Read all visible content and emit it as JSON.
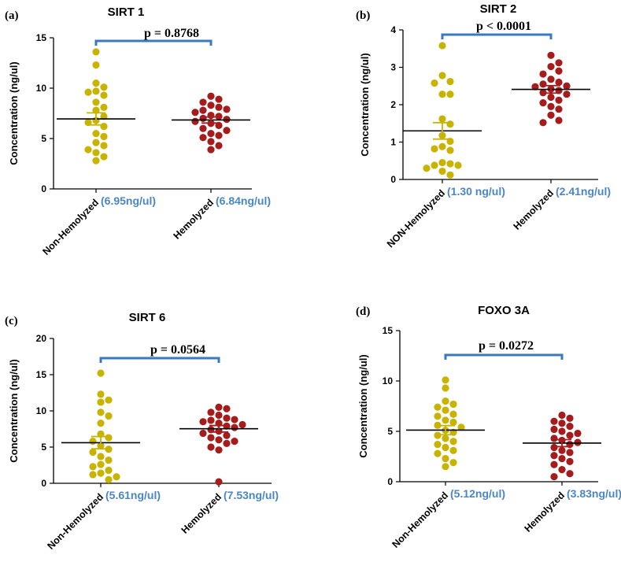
{
  "colors": {
    "non_hemolyzed": "#c8b400",
    "hemolyzed": "#a51c1c",
    "bracket": "#3a78c2",
    "mean_label": "#4a86c5"
  },
  "chart_data": [
    {
      "type": "scatter",
      "panel": "(a)",
      "title": "SIRT 1",
      "ylabel": "Concentration (ng/ul)",
      "ylim": [
        0,
        15
      ],
      "yticks": [
        "0",
        "5",
        "10",
        "15"
      ],
      "categories": [
        "Non-Hemolyzed",
        "Hemolyzed"
      ],
      "mean_labels": [
        "(6.95ng/ul)",
        "(6.84ng/ul)"
      ],
      "p_value": "p = 0.8768",
      "series": [
        {
          "name": "Non-Hemolyzed",
          "mean": 6.95,
          "sem": 0.6,
          "values": [
            13.6,
            12.3,
            10.5,
            10.1,
            9.7,
            9.6,
            9.3,
            8.6,
            8.1,
            7.8,
            7.2,
            6.8,
            6.6,
            6.2,
            5.5,
            5.2,
            4.6,
            4.3,
            3.9,
            3.6,
            3.2,
            2.8
          ]
        },
        {
          "name": "Hemolyzed",
          "mean": 6.84,
          "sem": 0.3,
          "values": [
            9.2,
            8.9,
            8.6,
            8.3,
            8.1,
            7.9,
            7.8,
            7.6,
            7.3,
            7.2,
            7.0,
            6.9,
            6.7,
            6.5,
            6.3,
            6.0,
            5.8,
            5.5,
            5.3,
            5.1,
            4.7,
            4.3,
            3.9
          ]
        }
      ]
    },
    {
      "type": "scatter",
      "panel": "(b)",
      "title": "SIRT 2",
      "ylabel": "Concentration (ng/ul)",
      "ylim": [
        0,
        4
      ],
      "yticks": [
        "0",
        "1",
        "2",
        "3",
        "4"
      ],
      "categories": [
        "NON-Hemolyzed",
        "Hemolyzed"
      ],
      "mean_labels": [
        "(1.30 ng/ul)",
        "(2.41ng/ul)"
      ],
      "p_value": "p < 0.0001",
      "series": [
        {
          "name": "NON-Hemolyzed",
          "mean": 1.3,
          "sem": 0.22,
          "values": [
            3.58,
            2.78,
            2.62,
            2.58,
            2.28,
            2.28,
            1.62,
            1.48,
            1.18,
            1.02,
            0.88,
            0.82,
            0.78,
            0.45,
            0.42,
            0.38,
            0.38,
            0.3,
            0.22,
            0.12
          ]
        },
        {
          "name": "Hemolyzed",
          "mean": 2.41,
          "sem": 0.1,
          "values": [
            3.32,
            3.12,
            3.02,
            2.9,
            2.82,
            2.68,
            2.6,
            2.55,
            2.5,
            2.48,
            2.42,
            2.38,
            2.32,
            2.28,
            2.2,
            2.12,
            2.05,
            1.95,
            1.88,
            1.72,
            1.58,
            1.52
          ]
        }
      ]
    },
    {
      "type": "scatter",
      "panel": "(c)",
      "title": "SIRT 6",
      "ylabel": "Concentration (ng/ul)",
      "ylim": [
        0,
        20
      ],
      "yticks": [
        "0",
        "5",
        "10",
        "15",
        "20"
      ],
      "categories": [
        "Non-Hemolyzed",
        "Hemolyzed"
      ],
      "mean_labels": [
        "(5.61ng/ul)",
        "(7.53ng/ul)"
      ],
      "p_value": "p = 0.0564",
      "series": [
        {
          "name": "Non-Hemolyzed",
          "mean": 5.61,
          "sem": 0.85,
          "values": [
            15.2,
            12.3,
            11.5,
            11.2,
            9.8,
            9.3,
            8.3,
            6.8,
            6.3,
            5.8,
            5.2,
            4.7,
            4.3,
            3.7,
            3.2,
            2.6,
            2.3,
            1.8,
            1.4,
            1.2,
            0.9,
            0.5
          ]
        },
        {
          "name": "Hemolyzed",
          "mean": 7.53,
          "sem": 0.45,
          "values": [
            10.5,
            10.3,
            9.8,
            9.4,
            9.0,
            8.8,
            8.7,
            8.5,
            8.3,
            8.1,
            7.9,
            7.7,
            7.4,
            7.2,
            6.9,
            6.6,
            6.3,
            6.0,
            5.8,
            5.5,
            5.0,
            4.6,
            0.2
          ]
        }
      ]
    },
    {
      "type": "scatter",
      "panel": "(d)",
      "title": "FOXO 3A",
      "ylabel": "Concentration (ng/ul)",
      "ylim": [
        0,
        15
      ],
      "yticks": [
        "0",
        "5",
        "10",
        "15"
      ],
      "categories": [
        "Non-Hemolyzed",
        "Hemolyzed"
      ],
      "mean_labels": [
        "(5.12ng/ul)",
        "(3.83ng/ul)"
      ],
      "p_value": "p = 0.0272",
      "series": [
        {
          "name": "Non-Hemolyzed",
          "mean": 5.12,
          "sem": 0.45,
          "values": [
            10.1,
            9.3,
            8.0,
            7.7,
            7.4,
            7.1,
            6.7,
            6.5,
            6.1,
            5.9,
            5.6,
            5.4,
            5.1,
            4.9,
            4.6,
            4.3,
            4.0,
            3.7,
            3.4,
            3.1,
            2.8,
            2.3,
            1.9,
            1.5
          ]
        },
        {
          "name": "Hemolyzed",
          "mean": 3.83,
          "sem": 0.35,
          "values": [
            6.6,
            6.3,
            6.0,
            5.8,
            5.5,
            5.2,
            5.0,
            4.8,
            4.6,
            4.3,
            4.1,
            3.9,
            3.7,
            3.4,
            3.1,
            2.9,
            2.6,
            2.3,
            2.0,
            1.7,
            1.2,
            0.8,
            0.5
          ]
        }
      ]
    }
  ]
}
